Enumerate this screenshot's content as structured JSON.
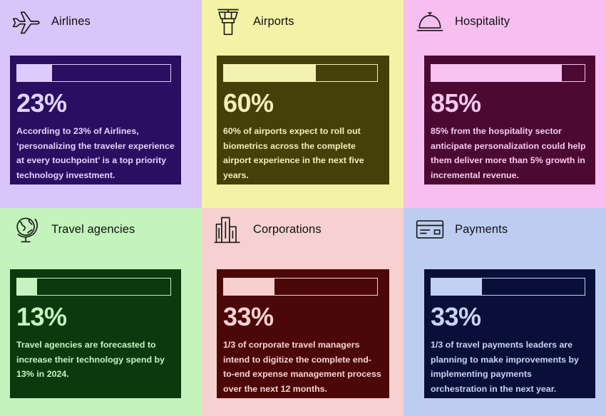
{
  "chart_data": {
    "type": "bar",
    "categories": [
      "Airlines",
      "Airports",
      "Hospitality",
      "Travel agencies",
      "Corporations",
      "Payments"
    ],
    "values": [
      23,
      60,
      85,
      13,
      33,
      33
    ],
    "value_labels": [
      "23%",
      "60%",
      "85%",
      "13%",
      "33%",
      "33%"
    ],
    "ylim": [
      0,
      100
    ]
  },
  "tiles": [
    {
      "label": "Airlines",
      "icon": "airplane-icon",
      "value": "23%",
      "fraction": 0.23,
      "description": "According to 23% of Airlines, ‘personalizing the traveler experience at every touchpoint’ is a top priority technology investment.",
      "colors": {
        "tile_bg": "#d9c5f9",
        "card_bg": "#2a0e62",
        "bar_fill": "#dccbfb",
        "text": "#e2d3fb"
      }
    },
    {
      "label": "Airports",
      "icon": "control-tower-icon",
      "value": "60%",
      "fraction": 0.6,
      "description": "60% of airports expect to roll out biometrics across the complete airport experience in the next five years.",
      "colors": {
        "tile_bg": "#f4f2a6",
        "card_bg": "#45400a",
        "bar_fill": "#f4f2b0",
        "text": "#f1efb6"
      }
    },
    {
      "label": "Hospitality",
      "icon": "service-bell-icon",
      "value": "85%",
      "fraction": 0.85,
      "description": "85% from the hospitality sector anticipate personalization could help them deliver more than 5% growth in incremental revenue.",
      "colors": {
        "tile_bg": "#f6bff0",
        "card_bg": "#4c0a33",
        "bar_fill": "#f7c2ef",
        "text": "#f5c9ef"
      }
    },
    {
      "label": "Travel agencies",
      "icon": "globe-icon",
      "value": "13%",
      "fraction": 0.13,
      "description": "Travel agencies are forecasted to increase their technology spend by 13% in 2024.",
      "colors": {
        "tile_bg": "#c3f4bb",
        "card_bg": "#0c3a0f",
        "bar_fill": "#c6f3bf",
        "text": "#c9f4c1"
      }
    },
    {
      "label": "Corporations",
      "icon": "buildings-icon",
      "value": "33%",
      "fraction": 0.33,
      "description": "1/3 of corporate travel managers intend to digitize the complete end-to-end expense management process over the next 12 months.",
      "colors": {
        "tile_bg": "#f7d1d1",
        "card_bg": "#4c0808",
        "bar_fill": "#f7cfcf",
        "text": "#f6d3d3"
      }
    },
    {
      "label": "Payments",
      "icon": "credit-card-icon",
      "value": "33%",
      "fraction": 0.33,
      "description": "1/3 of travel payments leaders are planning to make improvements by implementing payments orchestration in the next year.",
      "colors": {
        "tile_bg": "#bdcdf1",
        "card_bg": "#0a0f3a",
        "bar_fill": "#c2d0f3",
        "text": "#c8d4f3"
      }
    }
  ]
}
